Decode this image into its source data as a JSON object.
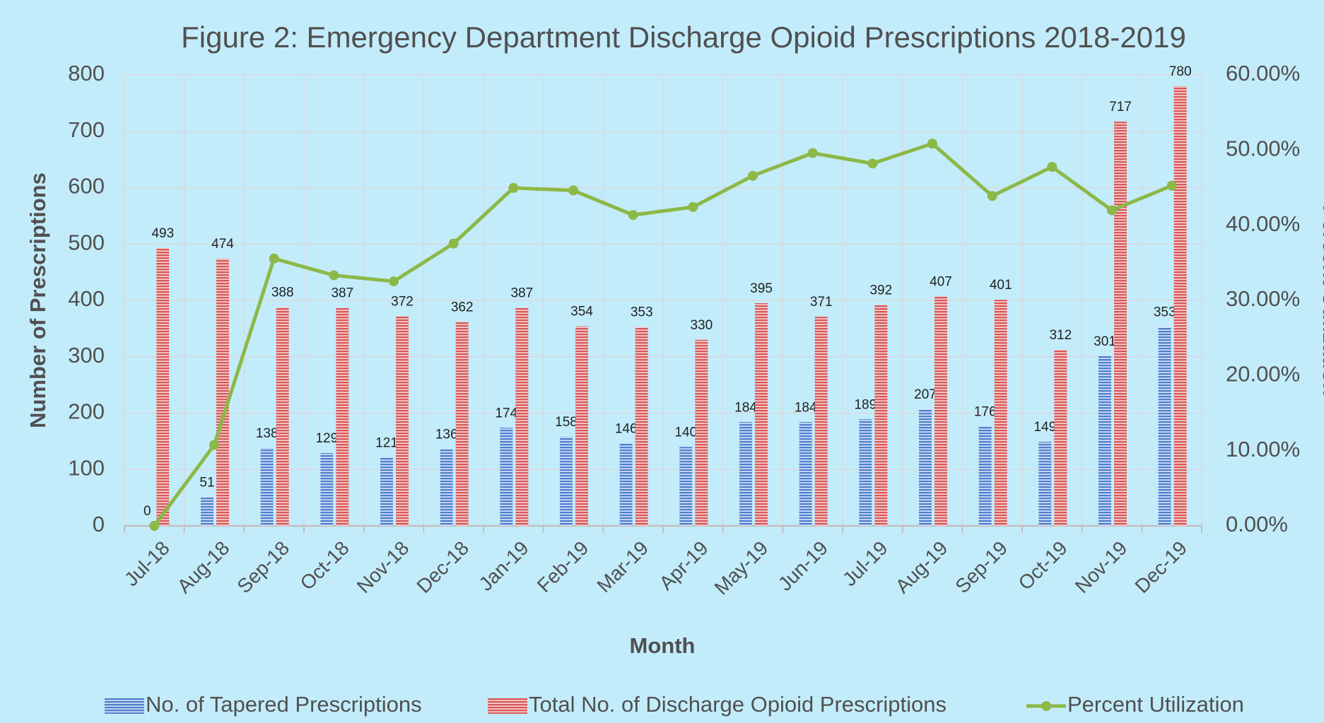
{
  "chart_data": {
    "type": "bar_line",
    "title": "Figure 2: Emergency Department Discharge Opioid Prescriptions 2018-2019",
    "x_label": "Month",
    "y_label": "Number of  Prescriptions",
    "y2_label": "Percent Utilization",
    "categories": [
      "Jul-18",
      "Aug-18",
      "Sep-18",
      "Oct-18",
      "Nov-18",
      "Dec-18",
      "Jan-19",
      "Feb-19",
      "Mar-19",
      "Apr-19",
      "May-19",
      "Jun-19",
      "Jul-19",
      "Aug-19",
      "Sep-19",
      "Oct-19",
      "Nov-19",
      "Dec-19"
    ],
    "series": [
      {
        "name": "No. of Tapered Prescriptions",
        "type": "bar",
        "color": "#4f7fd0",
        "values": [
          0,
          51,
          138,
          129,
          121,
          136,
          174,
          158,
          146,
          140,
          184,
          184,
          189,
          207,
          176,
          149,
          301,
          353
        ]
      },
      {
        "name": "Total No. of Discharge Opioid Prescriptions",
        "type": "bar",
        "color": "#d9585a",
        "values": [
          493,
          474,
          388,
          387,
          372,
          362,
          387,
          354,
          353,
          330,
          395,
          371,
          392,
          407,
          401,
          312,
          717,
          780
        ]
      },
      {
        "name": "Percent Utilization",
        "type": "line",
        "axis": "y2",
        "color": "#8cb847",
        "values": [
          0,
          10.76,
          35.57,
          33.33,
          32.53,
          37.57,
          44.96,
          44.63,
          41.36,
          42.42,
          46.58,
          49.6,
          48.21,
          50.86,
          43.89,
          47.76,
          41.98,
          45.26
        ]
      }
    ],
    "ylim": [
      0,
      800
    ],
    "yticks": [
      0,
      100,
      200,
      300,
      400,
      500,
      600,
      700,
      800
    ],
    "y2lim": [
      0,
      60
    ],
    "y2ticks": [
      {
        "value": 0,
        "label": "0.00%"
      },
      {
        "value": 10,
        "label": "10.00%"
      },
      {
        "value": 20,
        "label": "20.00%"
      },
      {
        "value": 30,
        "label": "30.00%"
      },
      {
        "value": 40,
        "label": "40.00%"
      },
      {
        "value": 50,
        "label": "50.00%"
      },
      {
        "value": 60,
        "label": "60.00%"
      }
    ],
    "grid": true,
    "legend": "bottom"
  }
}
